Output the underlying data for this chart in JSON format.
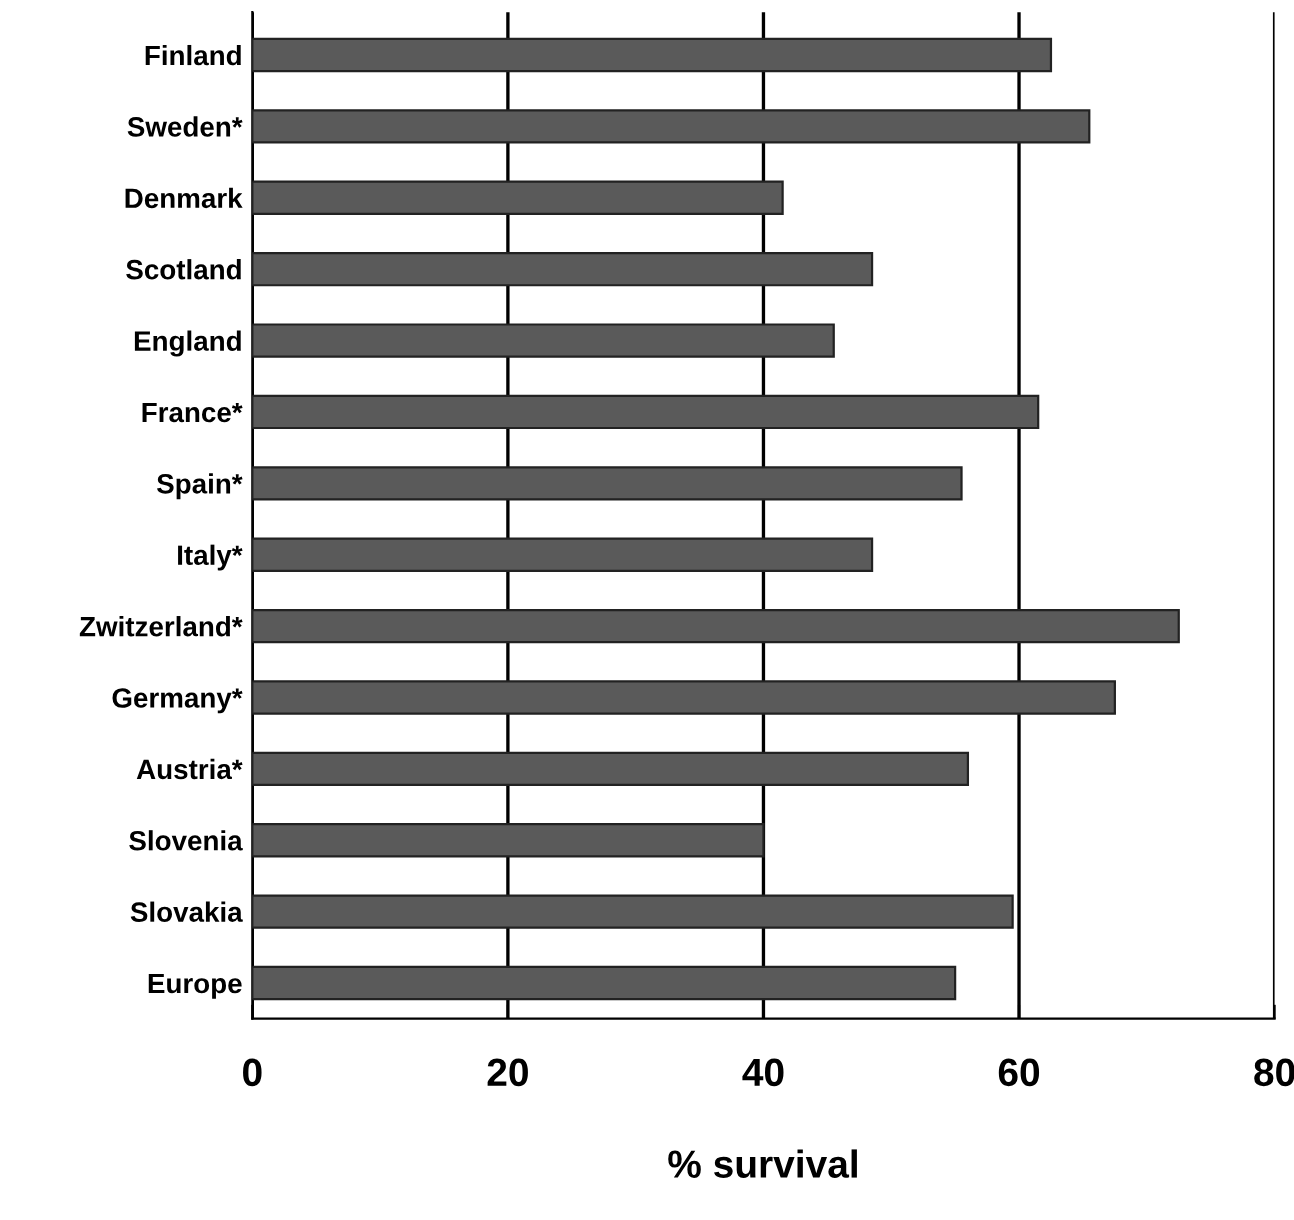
{
  "chart_data": {
    "type": "bar",
    "orientation": "horizontal",
    "xlabel": "% survival",
    "categories": [
      "Finland",
      "Sweden*",
      "Denmark",
      "Scotland",
      "England",
      "France*",
      "Spain*",
      "Italy*",
      "Zwitzerland*",
      "Germany*",
      "Austria*",
      "Slovenia",
      "Slovakia",
      "Europe"
    ],
    "values": [
      62.5,
      65.5,
      41.5,
      48.5,
      45.5,
      61.5,
      55.5,
      48.5,
      72.5,
      67.5,
      56,
      40,
      59.5,
      55
    ],
    "color": "#5a5a5a",
    "xlim": [
      0,
      80
    ],
    "xticks": [
      0,
      20,
      40,
      60,
      80
    ],
    "grid": "x",
    "legend": false
  }
}
